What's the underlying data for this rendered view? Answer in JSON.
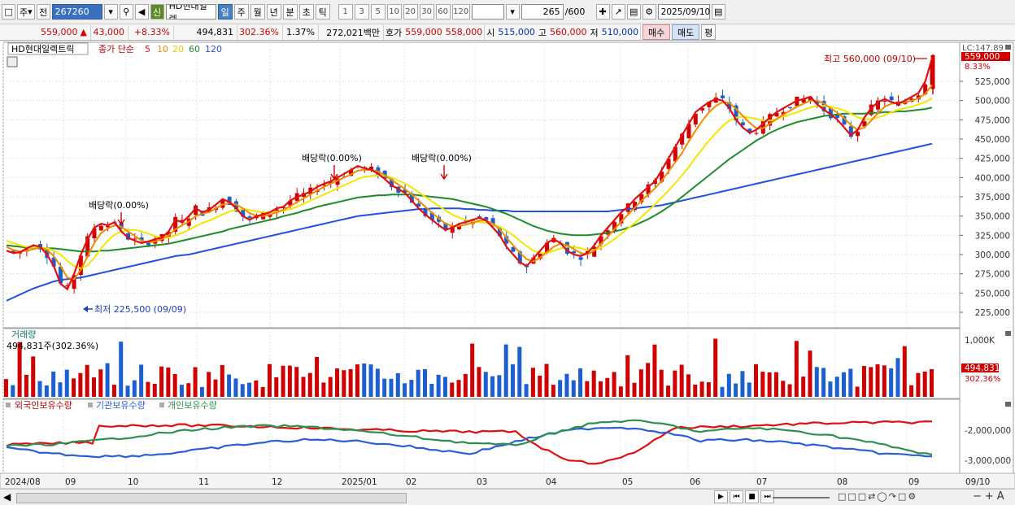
{
  "toolbar": {
    "period_1": "주",
    "prev_label": "전",
    "code": "267260",
    "badge": "신",
    "stock_name": "HD현대일렉",
    "periods": [
      "일",
      "주",
      "월",
      "년",
      "분",
      "초",
      "틱"
    ],
    "numbers": [
      "1",
      "3",
      "5",
      "10",
      "20",
      "30",
      "60",
      "120"
    ],
    "count": "265",
    "count_total": "/600",
    "date": "2025/09/10"
  },
  "pricebar": {
    "price": "559,000",
    "change_arrow": "▲",
    "change": "43,000",
    "change_pct": "+8.33%",
    "volume": "494,831",
    "volume_ratio": "302.36%",
    "turnover": "1.37%",
    "amount": "272,021백만",
    "ask_label": "호가",
    "ask": "559,000",
    "bid": "558,000",
    "open_label": "시",
    "open": "515,000",
    "high_label": "고",
    "high": "560,000",
    "low_label": "저",
    "low": "510,000",
    "buy_label": "매수",
    "sell_label": "매도",
    "eval_label": "평"
  },
  "colors": {
    "up": "#d00000",
    "down": "#1c5fd0",
    "ma5": "#e01010",
    "ma10": "#f08c00",
    "ma20": "#f5e600",
    "ma60": "#1e8c2c",
    "ma120": "#2050e0",
    "foreign": "#e01010",
    "institution": "#2a5fd8",
    "individual": "#2e9050"
  },
  "chart_data": {
    "type": "line",
    "title": "HD현대일렉트릭",
    "ma_label": "종가 단순",
    "ma_periods": [
      "5",
      "10",
      "20",
      "60",
      "120"
    ],
    "y_ticks": [
      "525,000",
      "500,000",
      "475,000",
      "450,000",
      "425,000",
      "400,000",
      "375,000",
      "350,000",
      "325,000",
      "300,000",
      "275,000",
      "250,000",
      "225,000"
    ],
    "x_ticks": [
      "2024/08",
      "09",
      "10",
      "11",
      "12",
      "2025/01",
      "02",
      "03",
      "04",
      "05",
      "06",
      "07",
      "08",
      "09",
      "09/10"
    ],
    "current_price_tag": "559,000",
    "current_pct_tag": "8.33%",
    "lc_label": "LC:147.89",
    "annotations": {
      "high": "최고 560,000 (09/10)",
      "low": "최저 225,500 (09/09)",
      "div1": "배당락(0.00%)",
      "div2": "배당락(0.00%)",
      "div3": "배당락(0.00%)"
    },
    "series": [
      {
        "name": "5",
        "values": [
          305,
          302,
          303,
          308,
          312,
          310,
          300,
          285,
          262,
          255,
          275,
          300,
          320,
          335,
          340,
          338,
          342,
          330,
          322,
          318,
          315,
          317,
          320,
          322,
          330,
          345,
          342,
          350,
          360,
          355,
          358,
          365,
          372,
          368,
          360,
          350,
          345,
          350,
          352,
          355,
          360,
          362,
          370,
          375,
          378,
          382,
          388,
          392,
          395,
          400,
          405,
          410,
          415,
          412,
          410,
          405,
          398,
          390,
          385,
          380,
          370,
          360,
          352,
          345,
          338,
          332,
          335,
          340,
          342,
          345,
          348,
          344,
          335,
          325,
          310,
          300,
          290,
          285,
          295,
          305,
          315,
          320,
          315,
          305,
          300,
          298,
          302,
          312,
          325,
          335,
          345,
          355,
          362,
          372,
          380,
          388,
          395,
          410,
          425,
          440,
          455,
          470,
          485,
          492,
          498,
          502,
          500,
          490,
          475,
          465,
          458,
          462,
          470,
          478,
          485,
          490,
          495,
          500,
          502,
          505,
          495,
          488,
          482,
          475,
          465,
          455,
          462,
          478,
          490,
          498,
          502,
          498,
          496,
          500,
          505,
          510,
          525,
          555
        ]
      },
      {
        "name": "10",
        "values": [
          310,
          306,
          304,
          305,
          307,
          309,
          306,
          298,
          285,
          270,
          268,
          280,
          298,
          315,
          328,
          334,
          338,
          336,
          330,
          324,
          318,
          316,
          317,
          320,
          325,
          333,
          338,
          343,
          350,
          353,
          355,
          360,
          365,
          367,
          365,
          360,
          354,
          350,
          350,
          352,
          355,
          358,
          363,
          368,
          373,
          378,
          383,
          388,
          392,
          396,
          400,
          404,
          409,
          410,
          410,
          408,
          403,
          397,
          391,
          385,
          378,
          370,
          362,
          354,
          347,
          340,
          337,
          337,
          339,
          341,
          344,
          344,
          340,
          333,
          322,
          312,
          302,
          294,
          291,
          296,
          303,
          310,
          314,
          312,
          307,
          302,
          300,
          305,
          314,
          323,
          333,
          343,
          352,
          361,
          370,
          378,
          386,
          396,
          408,
          420,
          432,
          447,
          461,
          474,
          485,
          493,
          498,
          497,
          489,
          480,
          471,
          464,
          464,
          470,
          476,
          482,
          487,
          492,
          496,
          500,
          500,
          496,
          490,
          484,
          477,
          468,
          462,
          465,
          474,
          484,
          492,
          496,
          497,
          498,
          500,
          503,
          509,
          520
        ]
      },
      {
        "name": "20",
        "values": [
          318,
          315,
          312,
          310,
          309,
          309,
          308,
          305,
          300,
          292,
          285,
          282,
          286,
          296,
          308,
          318,
          326,
          330,
          332,
          332,
          330,
          327,
          324,
          322,
          322,
          325,
          328,
          332,
          337,
          341,
          344,
          348,
          352,
          356,
          358,
          359,
          358,
          356,
          355,
          355,
          356,
          357,
          359,
          362,
          366,
          370,
          374,
          378,
          382,
          386,
          390,
          394,
          398,
          401,
          402,
          403,
          402,
          400,
          396,
          392,
          387,
          381,
          375,
          369,
          363,
          357,
          352,
          348,
          345,
          343,
          342,
          341,
          339,
          336,
          331,
          325,
          318,
          311,
          305,
          302,
          302,
          305,
          308,
          310,
          310,
          308,
          306,
          306,
          309,
          314,
          320,
          327,
          334,
          341,
          349,
          357,
          365,
          374,
          383,
          393,
          403,
          414,
          426,
          437,
          448,
          458,
          467,
          474,
          478,
          479,
          478,
          476,
          474,
          474,
          476,
          479,
          482,
          485,
          488,
          491,
          493,
          493,
          492,
          490,
          487,
          483,
          478,
          476,
          476,
          478,
          481,
          485,
          488,
          490,
          492,
          495,
          498,
          503
        ]
      },
      {
        "name": "60",
        "values": [
          312,
          311,
          310,
          309,
          309,
          309,
          308,
          308,
          307,
          306,
          305,
          304,
          304,
          304,
          305,
          305,
          306,
          307,
          308,
          309,
          310,
          311,
          312,
          313,
          314,
          316,
          318,
          320,
          322,
          324,
          326,
          328,
          330,
          333,
          335,
          337,
          339,
          341,
          343,
          345,
          347,
          350,
          352,
          354,
          357,
          359,
          362,
          364,
          366,
          368,
          370,
          372,
          374,
          375,
          376,
          377,
          377,
          378,
          378,
          378,
          378,
          377,
          376,
          375,
          374,
          373,
          372,
          370,
          368,
          366,
          364,
          362,
          359,
          356,
          353,
          349,
          345,
          341,
          337,
          334,
          331,
          329,
          327,
          326,
          325,
          325,
          325,
          326,
          327,
          328,
          330,
          332,
          335,
          338,
          342,
          346,
          351,
          356,
          362,
          368,
          375,
          382,
          389,
          396,
          403,
          410,
          417,
          424,
          430,
          436,
          442,
          448,
          453,
          458,
          462,
          466,
          469,
          472,
          474,
          476,
          478,
          480,
          481,
          482,
          483,
          483,
          483,
          483,
          484,
          484,
          485,
          485,
          486,
          486,
          487,
          488,
          489,
          491
        ]
      },
      {
        "name": "120",
        "values": [
          240,
          244,
          248,
          252,
          256,
          259,
          262,
          265,
          267,
          268,
          269,
          270,
          272,
          274,
          276,
          278,
          280,
          282,
          284,
          286,
          288,
          290,
          292,
          294,
          296,
          298,
          299,
          300,
          302,
          304,
          306,
          308,
          310,
          312,
          314,
          316,
          318,
          320,
          322,
          324,
          326,
          328,
          330,
          332,
          334,
          336,
          338,
          340,
          342,
          344,
          346,
          348,
          350,
          351,
          352,
          353,
          354,
          355,
          356,
          357,
          358,
          359,
          359,
          360,
          360,
          360,
          360,
          360,
          359,
          359,
          358,
          358,
          357,
          357,
          357,
          356,
          356,
          356,
          356,
          356,
          356,
          356,
          356,
          356,
          356,
          356,
          356,
          356,
          356,
          356,
          357,
          358,
          359,
          360,
          361,
          362,
          363,
          364,
          366,
          368,
          370,
          372,
          374,
          376,
          378,
          380,
          382,
          384,
          386,
          388,
          390,
          392,
          394,
          396,
          398,
          400,
          402,
          404,
          406,
          408,
          410,
          412,
          414,
          416,
          418,
          420,
          422,
          424,
          426,
          428,
          430,
          432,
          434,
          436,
          438,
          440,
          442,
          444
        ]
      }
    ],
    "volume_panel": {
      "title": "거래량",
      "current_text": "494,831주(302.36%)",
      "y_tick": "1,000K",
      "current_tag": "494,831",
      "current_pct": "302.36%"
    },
    "holdings_panel": {
      "legend": [
        "외국인보유수량",
        "기관보유수량",
        "개인보유수량"
      ],
      "y_ticks": [
        "-2,000,000",
        "-3,000,000"
      ]
    }
  }
}
